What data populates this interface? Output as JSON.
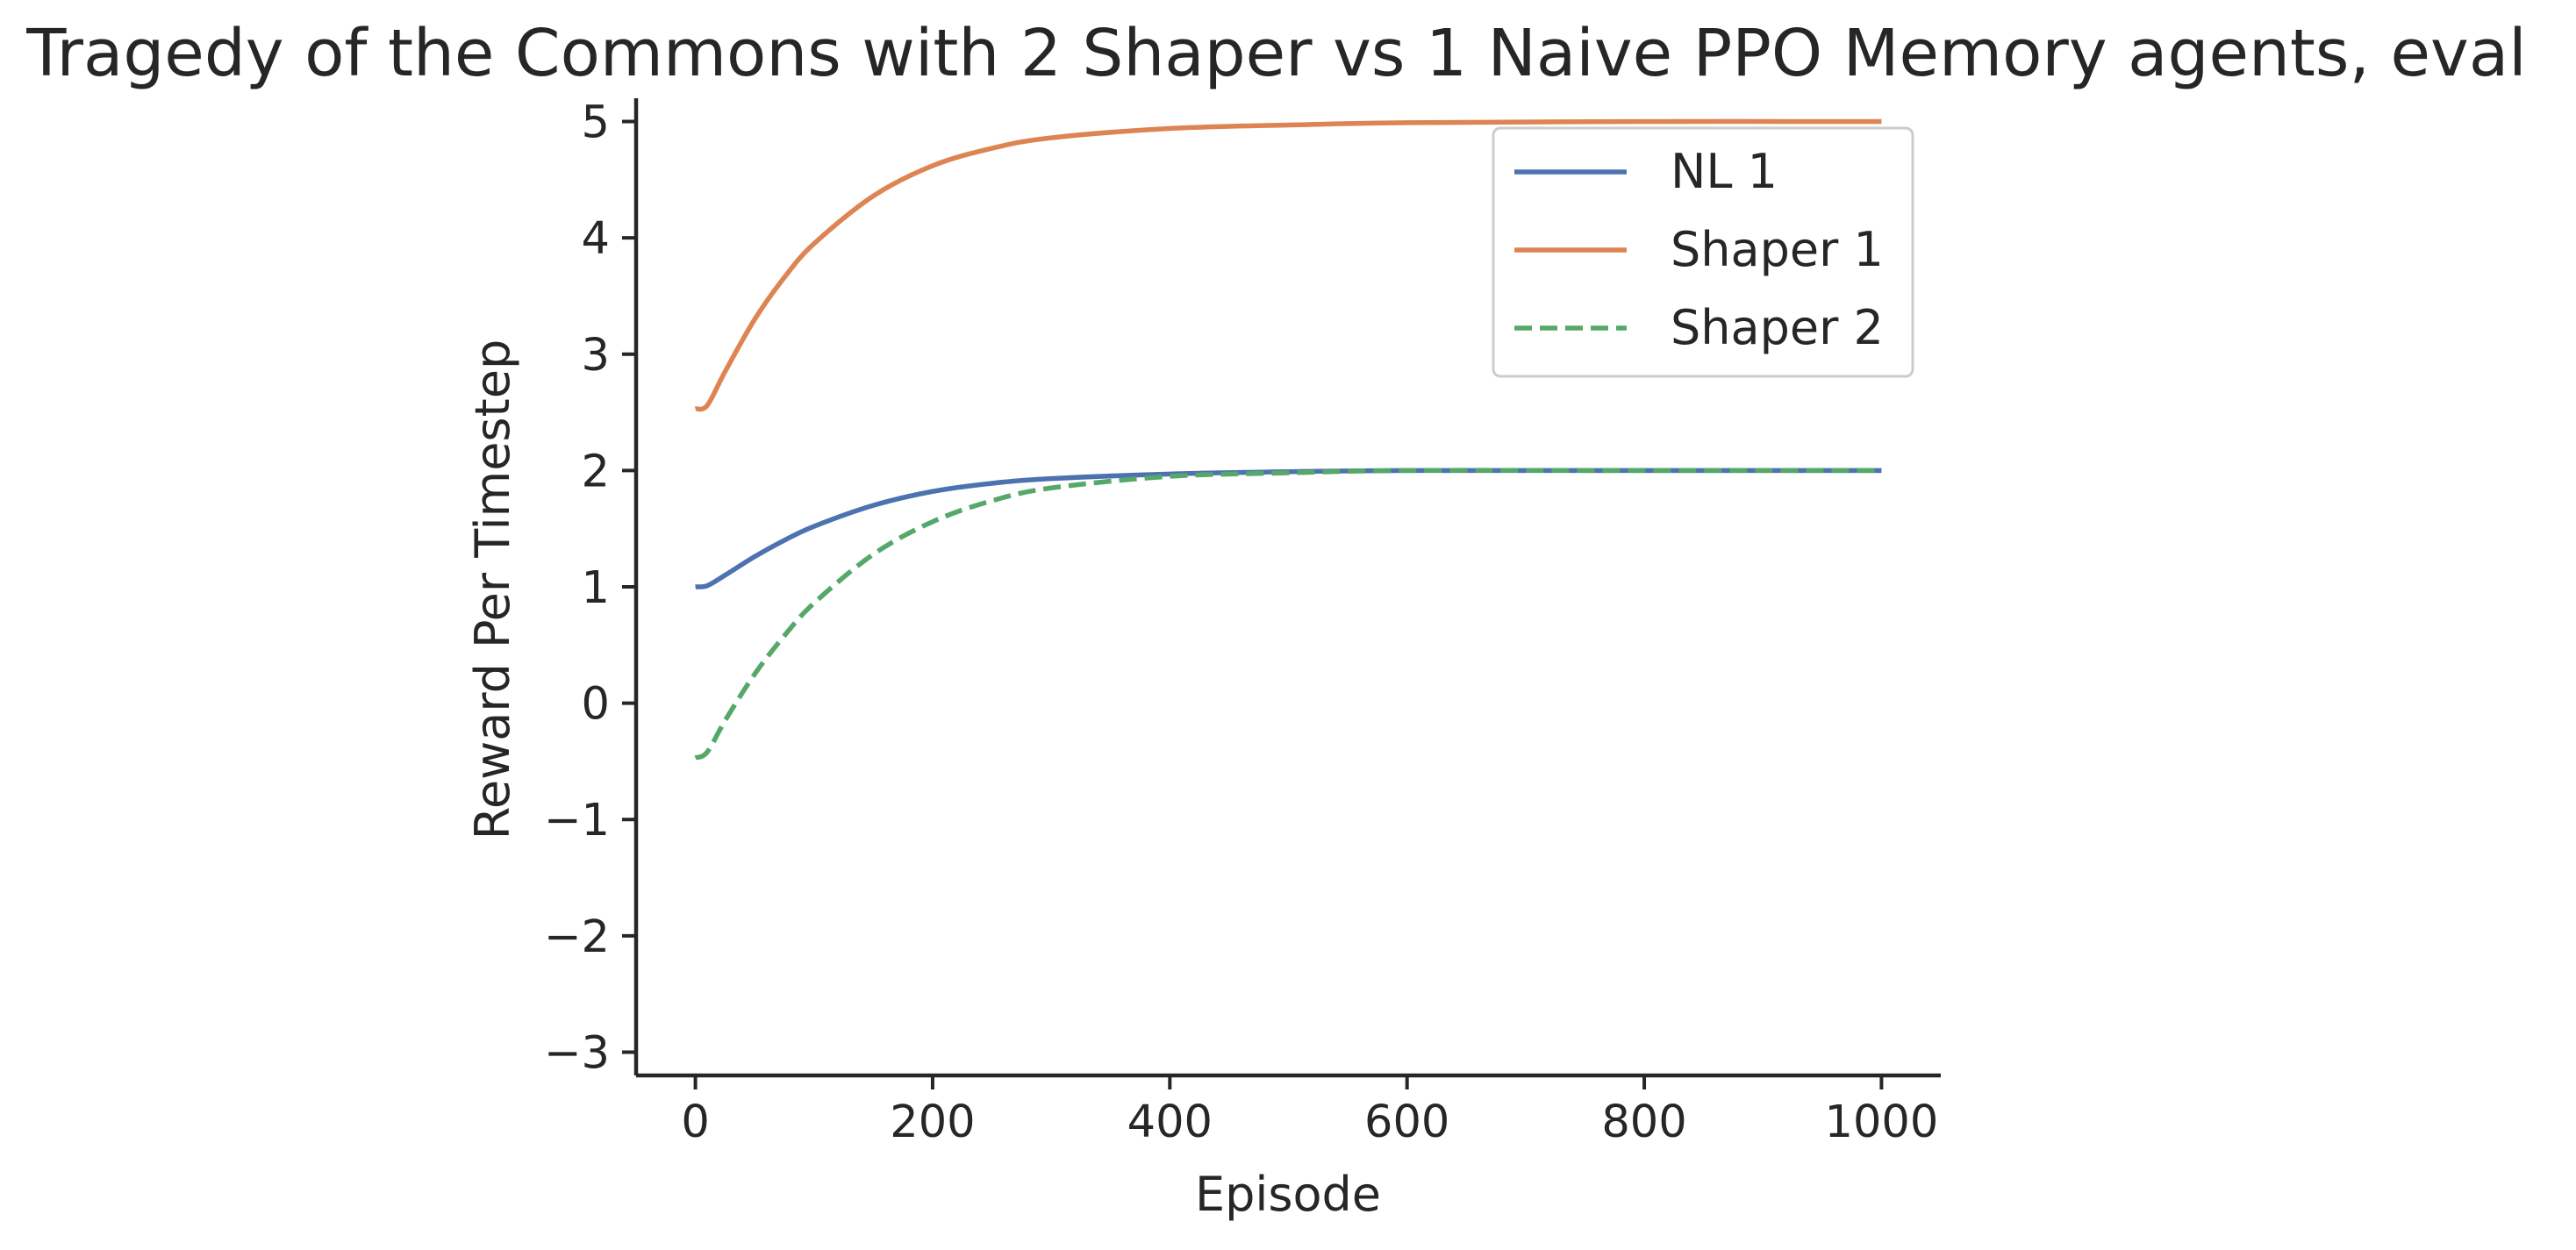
{
  "chart_data": {
    "type": "line",
    "title": "Tragedy of the Commons with 2 Shaper vs 1 Naive PPO Memory agents, eval",
    "xlabel": "Episode",
    "ylabel": "Reward Per Timestep",
    "xlim": [
      -50,
      1050
    ],
    "ylim": [
      -3.2,
      5.2
    ],
    "xticks": [
      0,
      200,
      400,
      600,
      800,
      1000
    ],
    "yticks": [
      -3,
      -2,
      -1,
      0,
      1,
      2,
      3,
      4,
      5
    ],
    "grid": false,
    "legend_position": "top-right",
    "series": [
      {
        "name": "NL 1",
        "color": "#4c72b0",
        "dash": "solid",
        "x": [
          0,
          10,
          25,
          50,
          75,
          100,
          150,
          200,
          250,
          300,
          400,
          500,
          600,
          800,
          1000
        ],
        "y": [
          1.0,
          1.01,
          1.1,
          1.26,
          1.4,
          1.52,
          1.7,
          1.82,
          1.89,
          1.93,
          1.97,
          1.99,
          2.0,
          2.0,
          2.0
        ]
      },
      {
        "name": "Shaper 1",
        "color": "#dd8452",
        "dash": "solid",
        "x": [
          0,
          10,
          25,
          50,
          75,
          100,
          150,
          200,
          250,
          300,
          400,
          500,
          600,
          800,
          1000
        ],
        "y": [
          2.53,
          2.56,
          2.85,
          3.3,
          3.66,
          3.95,
          4.36,
          4.62,
          4.77,
          4.86,
          4.94,
          4.97,
          4.99,
          5.0,
          5.0
        ]
      },
      {
        "name": "Shaper 2",
        "color": "#55a868",
        "dash": "dashed",
        "x": [
          0,
          10,
          25,
          50,
          75,
          100,
          150,
          200,
          250,
          300,
          400,
          500,
          600,
          800,
          1000
        ],
        "y": [
          -0.47,
          -0.42,
          -0.15,
          0.25,
          0.58,
          0.86,
          1.28,
          1.56,
          1.74,
          1.85,
          1.95,
          1.98,
          2.0,
          2.0,
          2.0
        ]
      }
    ]
  }
}
